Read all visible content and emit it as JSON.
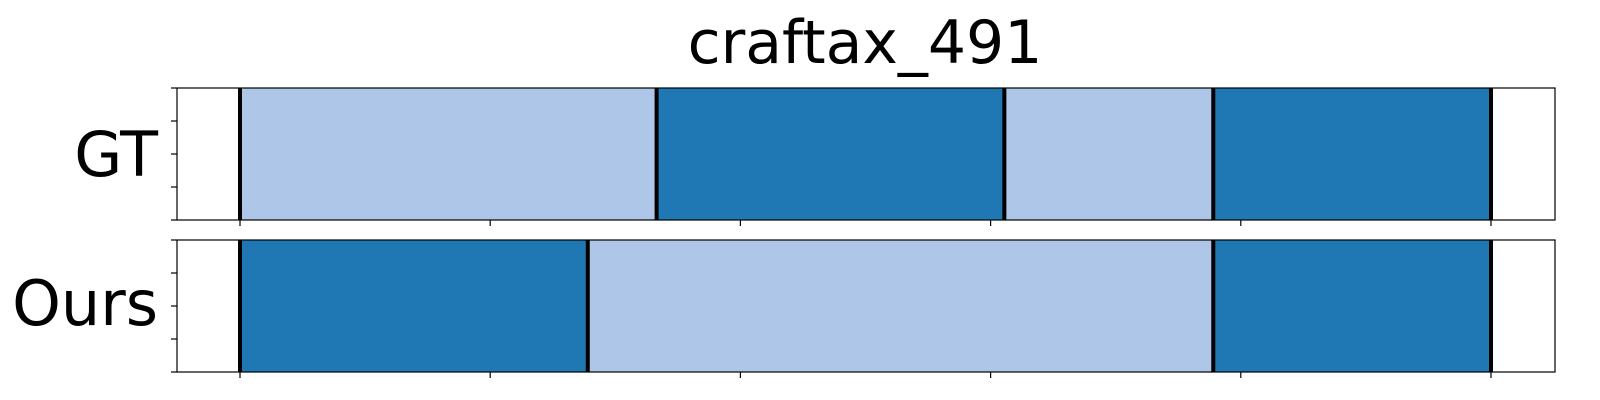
{
  "chart_data": {
    "type": "segmentation-timeline",
    "title": "craftax_491",
    "xlim": [
      0,
      1.1
    ],
    "x_ticks": [
      0,
      0.2,
      0.4,
      0.6,
      0.8,
      1.0
    ],
    "legend": "none",
    "grid": false,
    "colors": {
      "light": "#aec7e8",
      "dark": "#1f77b4",
      "boundary": "#000000"
    },
    "rows": [
      {
        "label": "GT",
        "segments": [
          {
            "start": 0.0,
            "end": 0.333,
            "class": "light"
          },
          {
            "start": 0.333,
            "end": 0.611,
            "class": "dark"
          },
          {
            "start": 0.611,
            "end": 0.778,
            "class": "light"
          },
          {
            "start": 0.778,
            "end": 1.0,
            "class": "dark"
          }
        ]
      },
      {
        "label": "Ours",
        "segments": [
          {
            "start": 0.0,
            "end": 0.278,
            "class": "dark"
          },
          {
            "start": 0.278,
            "end": 0.778,
            "class": "light"
          },
          {
            "start": 0.778,
            "end": 1.0,
            "class": "dark"
          }
        ]
      }
    ]
  }
}
